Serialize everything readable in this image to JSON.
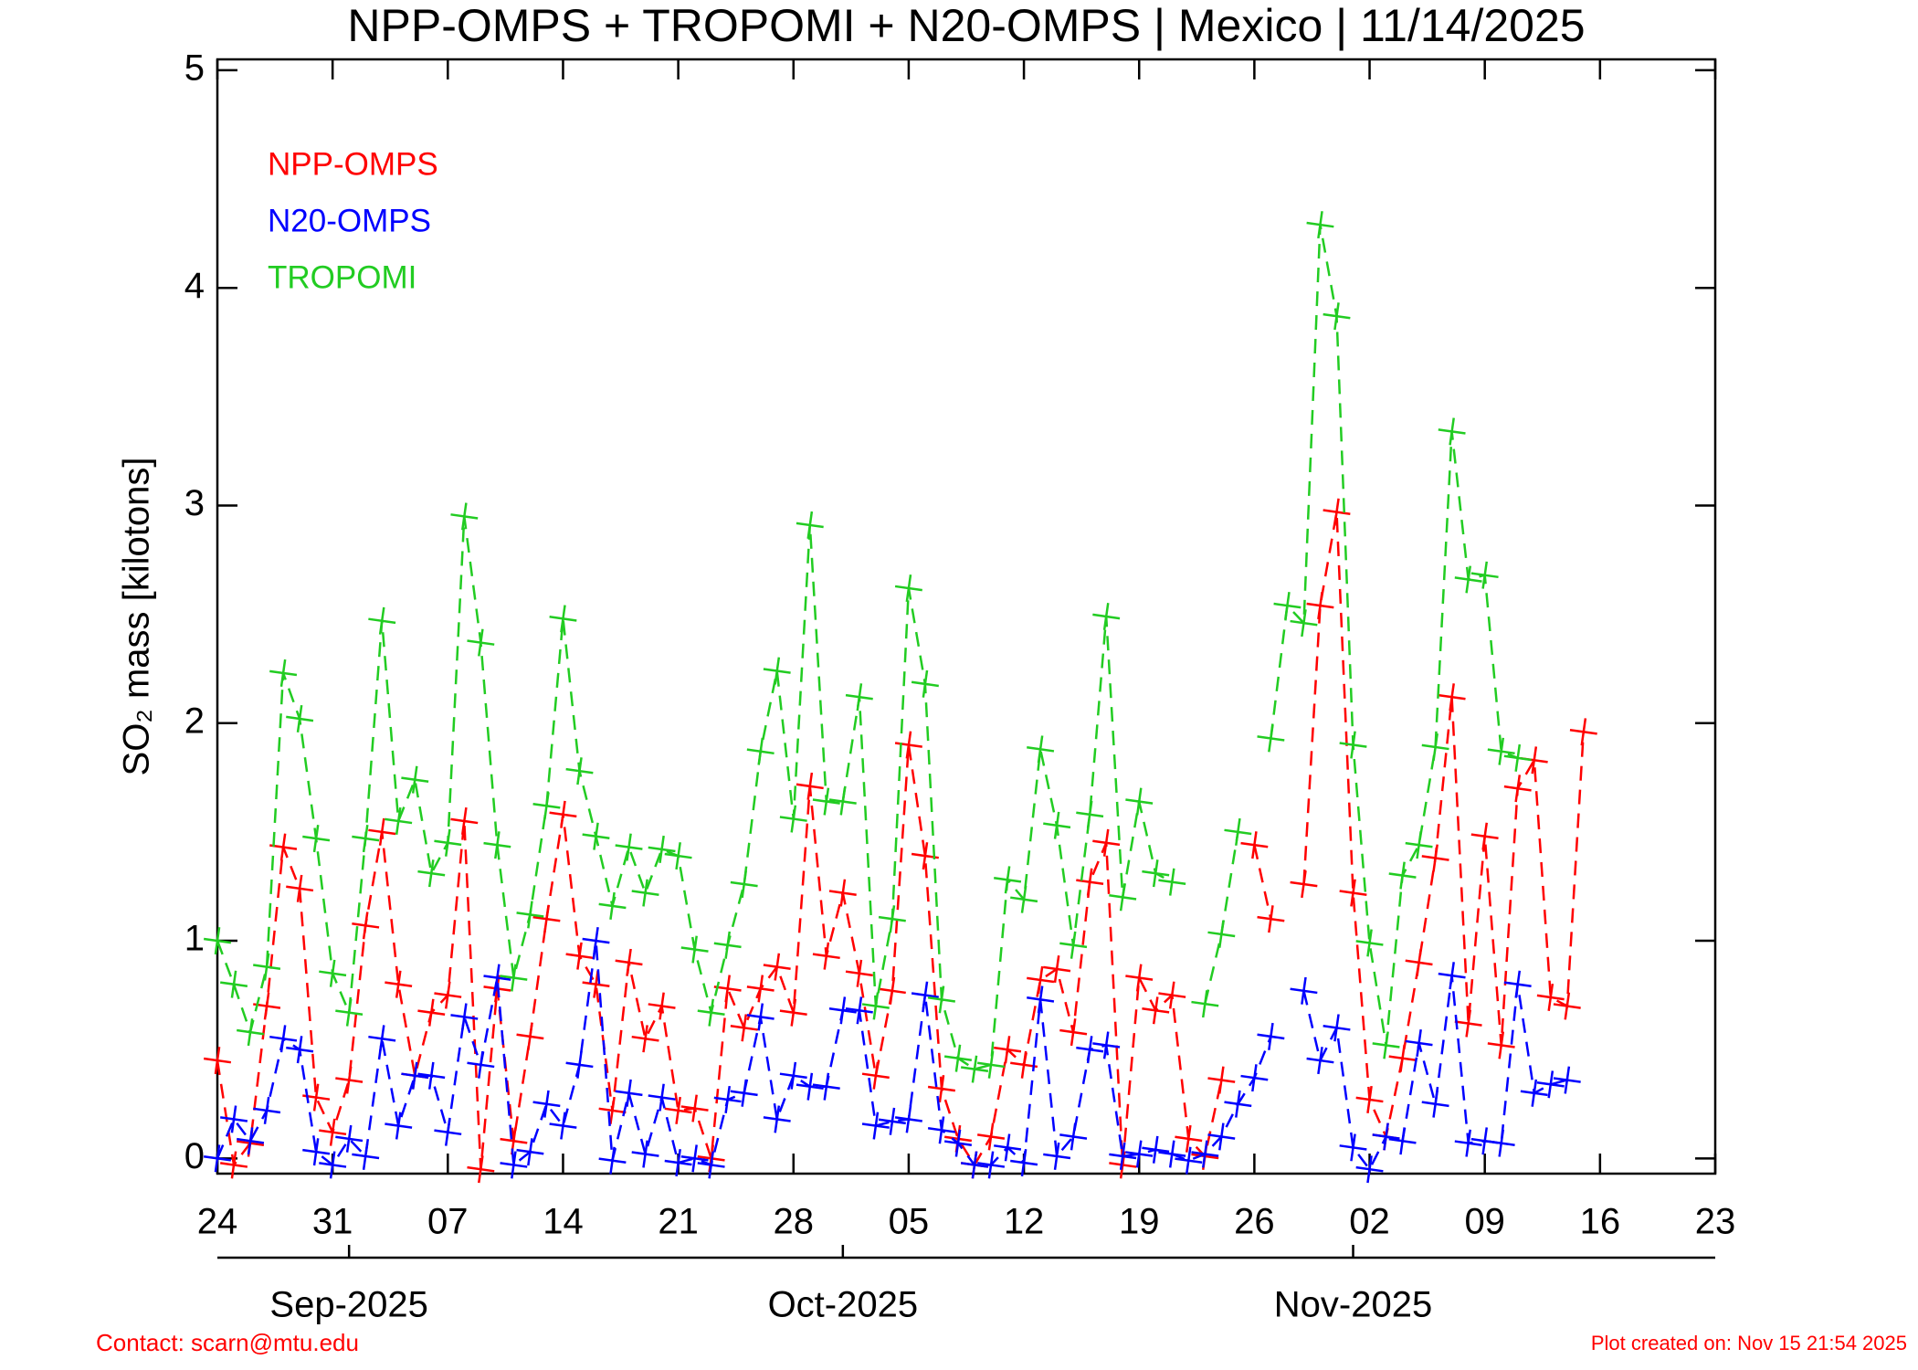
{
  "chart_data": {
    "type": "line",
    "title": "NPP-OMPS + TROPOMI + N20-OMPS | Mexico | 11/14/2025",
    "ylabel": "SO₂ mass [kilotons]",
    "footer_left": "Contact: scarn@mtu.edu",
    "footer_right": "Plot created on: Nov 15 21:54 2025",
    "x": [
      "2025-08-24",
      "2025-08-25",
      "2025-08-26",
      "2025-08-27",
      "2025-08-28",
      "2025-08-29",
      "2025-08-30",
      "2025-08-31",
      "2025-09-01",
      "2025-09-02",
      "2025-09-03",
      "2025-09-04",
      "2025-09-05",
      "2025-09-06",
      "2025-09-07",
      "2025-09-08",
      "2025-09-09",
      "2025-09-10",
      "2025-09-11",
      "2025-09-12",
      "2025-09-13",
      "2025-09-14",
      "2025-09-15",
      "2025-09-16",
      "2025-09-17",
      "2025-09-18",
      "2025-09-19",
      "2025-09-20",
      "2025-09-21",
      "2025-09-22",
      "2025-09-23",
      "2025-09-24",
      "2025-09-25",
      "2025-09-26",
      "2025-09-27",
      "2025-09-28",
      "2025-09-29",
      "2025-09-30",
      "2025-10-01",
      "2025-10-02",
      "2025-10-03",
      "2025-10-04",
      "2025-10-05",
      "2025-10-06",
      "2025-10-07",
      "2025-10-08",
      "2025-10-09",
      "2025-10-10",
      "2025-10-11",
      "2025-10-12",
      "2025-10-13",
      "2025-10-14",
      "2025-10-15",
      "2025-10-16",
      "2025-10-17",
      "2025-10-18",
      "2025-10-19",
      "2025-10-20",
      "2025-10-21",
      "2025-10-22",
      "2025-10-23",
      "2025-10-24",
      "2025-10-25",
      "2025-10-26",
      "2025-10-27",
      "2025-10-28",
      "2025-10-29",
      "2025-10-30",
      "2025-10-31",
      "2025-11-01",
      "2025-11-02",
      "2025-11-03",
      "2025-11-04",
      "2025-11-05",
      "2025-11-06",
      "2025-11-07",
      "2025-11-08",
      "2025-11-09",
      "2025-11-10",
      "2025-11-11",
      "2025-11-12",
      "2025-11-13",
      "2025-11-14",
      "2025-11-15"
    ],
    "series": [
      {
        "name": "NPP-OMPS",
        "color": "#ff0000",
        "values": [
          0.45,
          -0.03,
          0.07,
          0.7,
          1.43,
          1.24,
          0.28,
          0.12,
          0.36,
          1.07,
          1.5,
          0.8,
          0.38,
          0.67,
          0.75,
          1.55,
          -0.05,
          0.78,
          0.08,
          0.56,
          1.1,
          1.58,
          0.93,
          0.8,
          0.22,
          0.9,
          0.55,
          0.7,
          0.22,
          0.23,
          0.0,
          0.78,
          0.6,
          0.78,
          0.88,
          0.67,
          1.71,
          0.93,
          1.22,
          0.85,
          0.38,
          0.77,
          1.9,
          1.39,
          0.32,
          0.09,
          -0.03,
          0.1,
          0.5,
          0.43,
          0.82,
          0.87,
          0.58,
          1.27,
          1.45,
          -0.03,
          0.83,
          0.68,
          0.75,
          0.09,
          0.01,
          0.36,
          null,
          1.44,
          1.1,
          null,
          1.26,
          2.54,
          2.97,
          1.22,
          0.27,
          0.1,
          0.46,
          0.9,
          1.38,
          2.12,
          0.62,
          1.48,
          0.52,
          1.7,
          1.83,
          0.74,
          0.7,
          1.96
        ]
      },
      {
        "name": "N20-OMPS",
        "color": "#0000ff",
        "values": [
          0.0,
          0.18,
          0.08,
          0.22,
          0.55,
          0.5,
          0.03,
          -0.03,
          0.09,
          0.01,
          0.55,
          0.15,
          0.38,
          0.38,
          0.12,
          0.65,
          0.43,
          0.83,
          -0.03,
          0.03,
          0.25,
          0.15,
          0.43,
          1.0,
          -0.01,
          0.3,
          0.02,
          0.28,
          -0.02,
          0.0,
          -0.03,
          0.27,
          0.3,
          0.65,
          0.18,
          0.38,
          0.33,
          0.33,
          0.68,
          0.68,
          0.15,
          0.17,
          0.18,
          0.75,
          0.13,
          0.07,
          -0.03,
          -0.03,
          0.05,
          -0.02,
          0.73,
          0.01,
          0.1,
          0.5,
          0.52,
          0.01,
          0.02,
          0.04,
          0.02,
          -0.01,
          0.02,
          0.1,
          0.25,
          0.37,
          0.56,
          null,
          0.77,
          0.45,
          0.6,
          0.05,
          -0.05,
          0.1,
          0.08,
          0.53,
          0.25,
          0.84,
          0.07,
          0.08,
          0.07,
          0.8,
          0.3,
          0.34,
          0.36,
          null
        ]
      },
      {
        "name": "TROPOMI",
        "color": "#22cc22",
        "values": [
          1.0,
          0.8,
          0.58,
          0.88,
          2.23,
          2.02,
          1.47,
          0.85,
          0.67,
          1.47,
          2.47,
          1.55,
          1.74,
          1.31,
          1.45,
          2.95,
          2.37,
          1.44,
          0.83,
          1.12,
          1.62,
          2.48,
          1.78,
          1.48,
          1.16,
          1.43,
          1.22,
          1.42,
          1.39,
          0.96,
          0.67,
          0.98,
          1.26,
          1.87,
          2.24,
          1.56,
          2.91,
          1.64,
          1.64,
          2.12,
          0.7,
          1.1,
          2.62,
          2.18,
          0.73,
          0.46,
          0.41,
          0.43,
          1.28,
          1.19,
          1.88,
          1.53,
          0.98,
          1.58,
          2.49,
          1.2,
          1.64,
          1.31,
          1.27,
          null,
          0.71,
          1.03,
          1.5,
          null,
          1.93,
          2.54,
          2.46,
          4.29,
          3.87,
          1.9,
          0.99,
          0.52,
          1.3,
          1.44,
          1.89,
          3.34,
          2.66,
          2.68,
          1.87,
          1.84,
          null,
          null,
          null,
          null
        ]
      }
    ],
    "xlim": [
      "2025-08-24",
      "2025-11-23"
    ],
    "xticks": [
      {
        "value": "2025-08-24",
        "label": "24"
      },
      {
        "value": "2025-08-31",
        "label": "31"
      },
      {
        "value": "2025-09-07",
        "label": "07"
      },
      {
        "value": "2025-09-14",
        "label": "14"
      },
      {
        "value": "2025-09-21",
        "label": "21"
      },
      {
        "value": "2025-09-28",
        "label": "28"
      },
      {
        "value": "2025-10-05",
        "label": "05"
      },
      {
        "value": "2025-10-12",
        "label": "12"
      },
      {
        "value": "2025-10-19",
        "label": "19"
      },
      {
        "value": "2025-10-26",
        "label": "26"
      },
      {
        "value": "2025-11-02",
        "label": "02"
      },
      {
        "value": "2025-11-09",
        "label": "09"
      },
      {
        "value": "2025-11-16",
        "label": "16"
      },
      {
        "value": "2025-11-23",
        "label": "23"
      }
    ],
    "month_ticks": [
      {
        "value": "2025-09-01",
        "label": "Sep-2025"
      },
      {
        "value": "2025-10-01",
        "label": "Oct-2025"
      },
      {
        "value": "2025-11-01",
        "label": "Nov-2025"
      }
    ],
    "ylim": [
      -0.07,
      5.05
    ],
    "yticks": [
      0,
      1,
      2,
      3,
      4,
      5
    ],
    "grid": false,
    "legend": "upper left"
  }
}
